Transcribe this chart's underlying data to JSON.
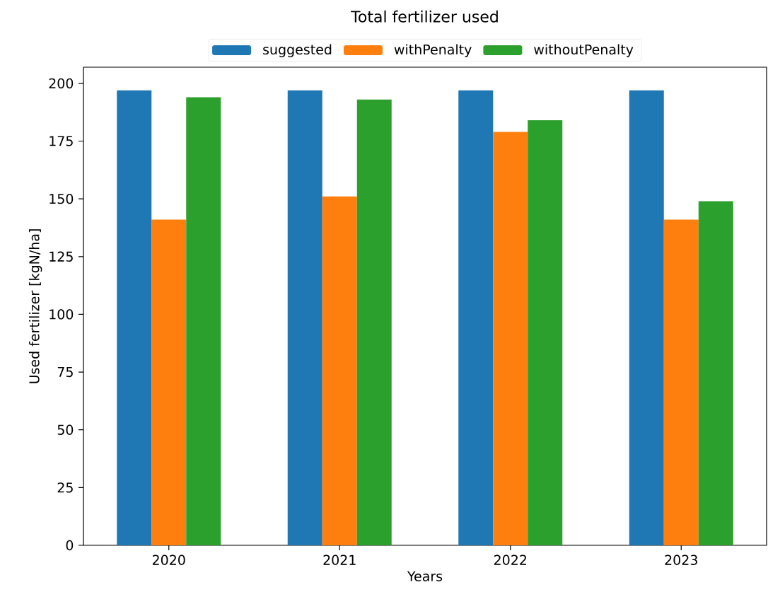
{
  "chart_data": {
    "type": "bar",
    "title": "Total fertilizer used",
    "xlabel": "Years",
    "ylabel": "Used fertilizer [kgN/ha]",
    "categories": [
      "2020",
      "2021",
      "2022",
      "2023"
    ],
    "series": [
      {
        "name": "suggested",
        "color": "#1f77b4",
        "values": [
          197,
          197,
          197,
          197
        ]
      },
      {
        "name": "withPenalty",
        "color": "#ff7f0e",
        "values": [
          141,
          151,
          179,
          141
        ]
      },
      {
        "name": "withoutPenalty",
        "color": "#2ca02c",
        "values": [
          194,
          193,
          184,
          149
        ]
      }
    ],
    "ylim": [
      0,
      207
    ],
    "yticks": [
      0,
      25,
      50,
      75,
      100,
      125,
      150,
      175,
      200
    ],
    "grid": false,
    "legend": "top"
  }
}
